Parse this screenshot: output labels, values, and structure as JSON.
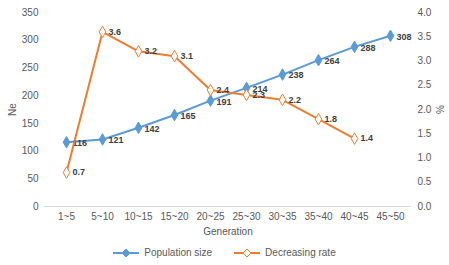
{
  "chart_data": {
    "type": "line",
    "x_label": "Generation",
    "y_label": "Ne",
    "y2_label": "%",
    "categories": [
      "1~5",
      "5~10",
      "10~15",
      "15~20",
      "20~25",
      "25~30",
      "30~35",
      "35~40",
      "40~45",
      "45~50"
    ],
    "series": [
      {
        "name": "Population size",
        "type": "line",
        "color": "#5b9bd5",
        "marker": "diamond",
        "values": [
          116,
          121,
          142,
          165,
          191,
          214,
          238,
          264,
          288,
          308
        ]
      },
      {
        "name": "Decreasing rate",
        "type": "line",
        "color": "#ed7d31",
        "marker": "diamond",
        "axis": "y2",
        "values": [
          0.7,
          3.6,
          3.2,
          3.1,
          2.4,
          2.3,
          2.2,
          1.8,
          1.4,
          null
        ]
      }
    ],
    "ylim": [
      0,
      350
    ],
    "yticks": [
      0,
      50,
      100,
      150,
      200,
      250,
      300,
      350
    ],
    "y2lim": [
      0,
      4
    ],
    "y2ticks": [
      {
        "value": 0,
        "label": "0.0"
      },
      0.5,
      {
        "value": 1,
        "label": "1.0"
      },
      1.5,
      {
        "value": 2,
        "label": "2.0"
      },
      2.5,
      {
        "value": 3,
        "label": "3.0"
      },
      3.5,
      {
        "value": 4,
        "label": "4.0"
      }
    ],
    "data_labels": true,
    "grid": false,
    "legend": "bottom"
  }
}
